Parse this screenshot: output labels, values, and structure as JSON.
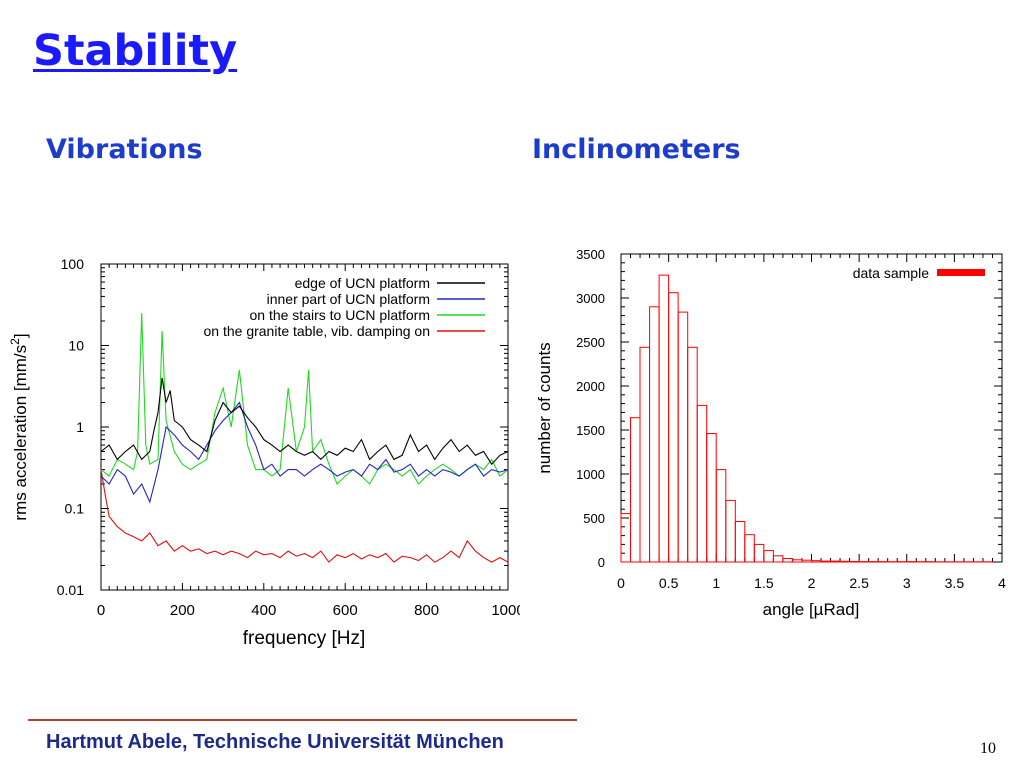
{
  "slide": {
    "title": "Stability",
    "section_left": "Vibrations",
    "section_right": "Inclinometers",
    "footer": "Hartmut Abele, Technische Universität München",
    "page_number": "10"
  },
  "colors": {
    "title": "#1a1aff",
    "section": "#1c3ccb",
    "footer_text": "#1c2a8c",
    "footer_rule": "#c0392b"
  },
  "chart_data": [
    {
      "type": "line",
      "title": "",
      "xlabel": "frequency [Hz]",
      "ylabel_main": "rms acceleration [mm/s",
      "ylabel_sup": "2",
      "ylabel_tail": "]",
      "xlim": [
        0,
        1000
      ],
      "ylim": [
        0.01,
        100
      ],
      "yscale": "log",
      "xticks": [
        "0",
        "200",
        "400",
        "600",
        "800",
        "1000"
      ],
      "yticks": [
        "0.01",
        "0.1",
        "1",
        "10",
        "100"
      ],
      "legend_position": "top-right",
      "series": [
        {
          "name": "edge of UCN platform",
          "color": "#000000",
          "x": [
            0,
            20,
            40,
            60,
            80,
            100,
            120,
            130,
            140,
            150,
            160,
            170,
            180,
            200,
            220,
            240,
            260,
            280,
            300,
            320,
            340,
            360,
            380,
            400,
            420,
            440,
            460,
            480,
            500,
            520,
            540,
            560,
            580,
            600,
            620,
            640,
            660,
            680,
            700,
            720,
            740,
            760,
            780,
            800,
            820,
            840,
            860,
            880,
            900,
            920,
            940,
            960,
            980,
            1000
          ],
          "y": [
            0.5,
            0.6,
            0.4,
            0.5,
            0.6,
            0.4,
            0.5,
            0.9,
            1.5,
            4.0,
            2.0,
            2.8,
            1.2,
            1.0,
            0.7,
            0.6,
            0.5,
            1.2,
            2.0,
            1.5,
            1.8,
            1.3,
            1.0,
            0.7,
            0.6,
            0.5,
            0.6,
            0.5,
            0.45,
            0.5,
            0.4,
            0.5,
            0.45,
            0.55,
            0.5,
            0.7,
            0.4,
            0.5,
            0.6,
            0.4,
            0.45,
            0.8,
            0.5,
            0.6,
            0.4,
            0.55,
            0.7,
            0.5,
            0.6,
            0.45,
            0.5,
            0.35,
            0.45,
            0.5
          ]
        },
        {
          "name": "inner part of UCN platform",
          "color": "#2323c8",
          "x": [
            0,
            20,
            40,
            60,
            80,
            100,
            120,
            140,
            160,
            180,
            200,
            220,
            240,
            260,
            280,
            300,
            320,
            340,
            360,
            380,
            400,
            420,
            440,
            460,
            480,
            500,
            520,
            540,
            560,
            580,
            600,
            620,
            640,
            660,
            680,
            700,
            720,
            740,
            760,
            780,
            800,
            820,
            840,
            860,
            880,
            900,
            920,
            940,
            960,
            980,
            1000
          ],
          "y": [
            0.25,
            0.2,
            0.3,
            0.25,
            0.15,
            0.2,
            0.12,
            0.3,
            1.0,
            0.8,
            0.6,
            0.5,
            0.4,
            0.6,
            0.9,
            1.2,
            1.5,
            2.0,
            1.0,
            0.6,
            0.3,
            0.35,
            0.25,
            0.3,
            0.3,
            0.25,
            0.3,
            0.35,
            0.3,
            0.25,
            0.28,
            0.3,
            0.25,
            0.35,
            0.3,
            0.4,
            0.28,
            0.3,
            0.35,
            0.25,
            0.3,
            0.25,
            0.3,
            0.28,
            0.25,
            0.3,
            0.35,
            0.25,
            0.3,
            0.28,
            0.3
          ]
        },
        {
          "name": "on the stairs to UCN platform",
          "color": "#21d921",
          "x": [
            0,
            20,
            40,
            60,
            80,
            90,
            100,
            110,
            120,
            140,
            150,
            160,
            180,
            200,
            220,
            240,
            260,
            280,
            300,
            320,
            340,
            360,
            380,
            400,
            420,
            440,
            460,
            480,
            500,
            510,
            520,
            540,
            560,
            580,
            600,
            620,
            640,
            660,
            680,
            700,
            720,
            740,
            760,
            780,
            800,
            820,
            840,
            860,
            880,
            900,
            920,
            940,
            960,
            980,
            1000
          ],
          "y": [
            0.3,
            0.25,
            0.4,
            0.35,
            0.3,
            0.5,
            25.0,
            0.6,
            0.35,
            0.4,
            15.0,
            1.2,
            0.5,
            0.35,
            0.3,
            0.35,
            0.4,
            1.5,
            3.0,
            1.0,
            5.0,
            0.6,
            0.3,
            0.3,
            0.25,
            0.3,
            3.0,
            0.5,
            1.0,
            5.0,
            0.5,
            0.7,
            0.35,
            0.2,
            0.25,
            0.3,
            0.25,
            0.2,
            0.3,
            0.35,
            0.3,
            0.25,
            0.3,
            0.2,
            0.25,
            0.3,
            0.35,
            0.3,
            0.25,
            0.3,
            0.35,
            0.3,
            0.4,
            0.25,
            0.3
          ]
        },
        {
          "name": "on the granite table, vib. damping on",
          "color": "#e01010",
          "x": [
            0,
            10,
            20,
            40,
            60,
            80,
            100,
            120,
            140,
            160,
            180,
            200,
            220,
            240,
            260,
            280,
            300,
            320,
            340,
            360,
            380,
            400,
            420,
            440,
            460,
            480,
            500,
            520,
            540,
            560,
            580,
            600,
            620,
            640,
            660,
            680,
            700,
            720,
            740,
            760,
            780,
            800,
            820,
            840,
            860,
            880,
            900,
            920,
            940,
            960,
            980,
            1000
          ],
          "y": [
            0.3,
            0.15,
            0.08,
            0.06,
            0.05,
            0.045,
            0.04,
            0.05,
            0.035,
            0.04,
            0.03,
            0.035,
            0.03,
            0.032,
            0.028,
            0.03,
            0.027,
            0.03,
            0.028,
            0.025,
            0.03,
            0.027,
            0.028,
            0.025,
            0.03,
            0.026,
            0.028,
            0.025,
            0.03,
            0.022,
            0.027,
            0.025,
            0.028,
            0.024,
            0.027,
            0.025,
            0.028,
            0.022,
            0.026,
            0.025,
            0.023,
            0.027,
            0.022,
            0.025,
            0.03,
            0.025,
            0.04,
            0.03,
            0.025,
            0.022,
            0.025,
            0.022
          ]
        }
      ]
    },
    {
      "type": "bar",
      "title": "",
      "xlabel": "angle [µRad]",
      "ylabel": "number of counts",
      "xlim": [
        0,
        4
      ],
      "ylim": [
        0,
        3500
      ],
      "xticks": [
        "0",
        "0.5",
        "1",
        "1.5",
        "2",
        "2.5",
        "3",
        "3.5",
        "4"
      ],
      "yticks": [
        "0",
        "500",
        "1000",
        "1500",
        "2000",
        "2500",
        "3000",
        "3500"
      ],
      "bin_width": 0.1,
      "bin_starts": [
        0,
        0.1,
        0.2,
        0.3,
        0.4,
        0.5,
        0.6,
        0.7,
        0.8,
        0.9,
        1.0,
        1.1,
        1.2,
        1.3,
        1.4,
        1.5,
        1.6,
        1.7,
        1.8,
        1.9,
        2.0,
        2.1,
        2.2,
        2.3,
        2.4,
        2.5,
        2.6,
        2.7,
        2.8,
        2.9,
        3.0,
        3.1,
        3.2,
        3.3,
        3.4,
        3.5,
        3.6,
        3.7,
        3.8
      ],
      "counts": [
        550,
        1640,
        2440,
        2900,
        3260,
        3060,
        2840,
        2440,
        1780,
        1460,
        1050,
        700,
        460,
        310,
        200,
        130,
        70,
        40,
        25,
        20,
        15,
        10,
        10,
        8,
        6,
        5,
        5,
        4,
        3,
        3,
        5,
        3,
        3,
        2,
        2,
        2,
        2,
        2,
        2
      ],
      "legend_position": "top-right",
      "series": [
        {
          "name": "data sample",
          "color": "#ff0000"
        }
      ]
    }
  ]
}
